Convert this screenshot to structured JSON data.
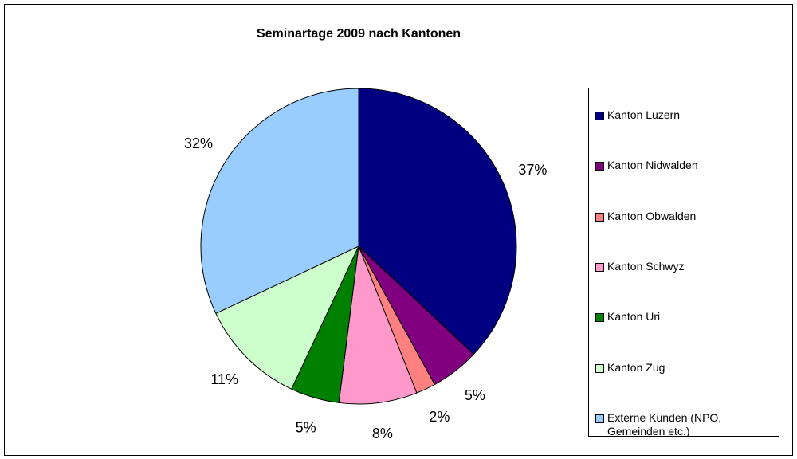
{
  "chart_data": {
    "type": "pie",
    "title": "Seminartage 2009 nach Kantonen",
    "categories": [
      "Kanton Luzern",
      "Kanton Nidwalden",
      "Kanton Obwalden",
      "Kanton Schwyz",
      "Kanton Uri",
      "Kanton Zug",
      "Externe Kunden (NPO, Gemeinden etc.)"
    ],
    "values": [
      37,
      5,
      2,
      8,
      5,
      11,
      32
    ],
    "value_labels": [
      "37%",
      "5%",
      "2%",
      "8%",
      "5%",
      "11%",
      "32%"
    ],
    "colors": [
      "#000080",
      "#800080",
      "#FF8080",
      "#FF99CC",
      "#008000",
      "#CCFFCC",
      "#99CCFF"
    ],
    "legend": "right"
  }
}
